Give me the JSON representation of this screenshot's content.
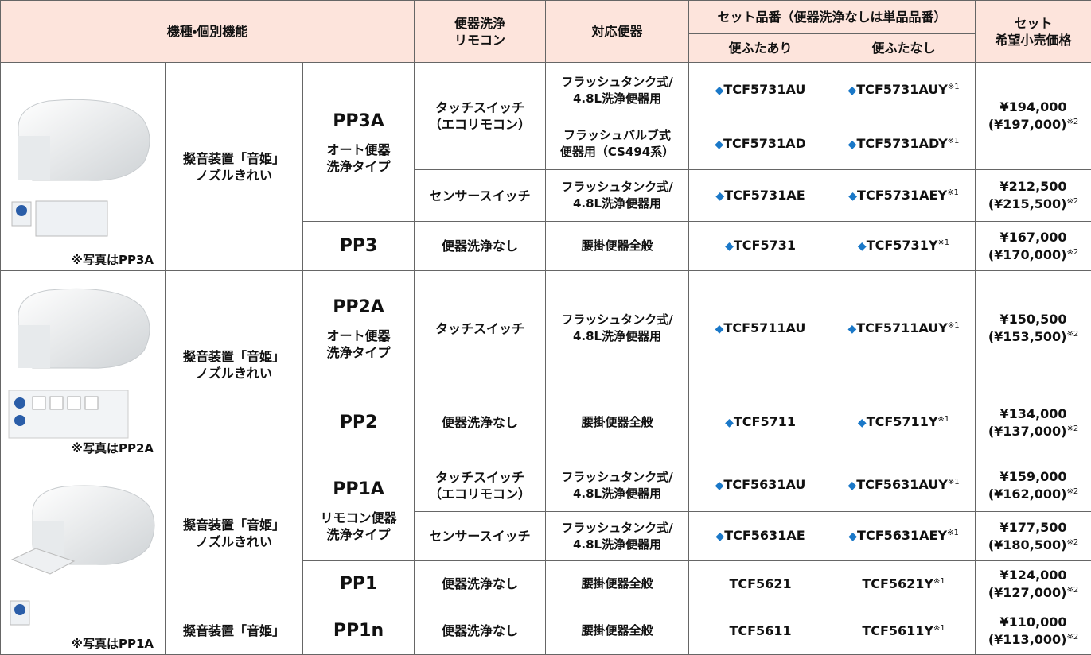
{
  "header": {
    "model_feature": "機種・個別機能",
    "remote": [
      "便器洗浄",
      "リモコン"
    ],
    "toilet": "対応便器",
    "set_number": "セット品番（便器洗浄なしは単品品番）",
    "with_lid": "便ふたあり",
    "without_lid": "便ふたなし",
    "price": [
      "セット",
      "希望小売価格"
    ]
  },
  "rows": [
    {
      "photo_caption": "※写真はPP3A",
      "feature": [
        "擬音装置「音姫」",
        "ノズルきれい"
      ],
      "model": "PP3A",
      "model_type": [
        "オート便器",
        "洗浄タイプ"
      ],
      "remote": [
        "タッチスイッチ",
        "（エコリモコン）"
      ],
      "toilet": [
        "フラッシュタンク式/",
        "4.8L洗浄便器用"
      ],
      "with_lid": {
        "mark": "◆",
        "code": "TCF5731AU"
      },
      "without_lid": {
        "mark": "◆",
        "code": "TCF5731AUY",
        "note": "※1"
      },
      "price": {
        "retail": "¥194,000",
        "incl": "(¥197,000)",
        "note": "※2"
      }
    },
    {
      "toilet": [
        "フラッシュバルブ式",
        "便器用（CS494系）"
      ],
      "with_lid": {
        "mark": "◆",
        "code": "TCF5731AD"
      },
      "without_lid": {
        "mark": "◆",
        "code": "TCF5731ADY",
        "note": "※1"
      }
    },
    {
      "remote": [
        "センサースイッチ"
      ],
      "toilet": [
        "フラッシュタンク式/",
        "4.8L洗浄便器用"
      ],
      "with_lid": {
        "mark": "◆",
        "code": "TCF5731AE"
      },
      "without_lid": {
        "mark": "◆",
        "code": "TCF5731AEY",
        "note": "※1"
      },
      "price": {
        "retail": "¥212,500",
        "incl": "(¥215,500)",
        "note": "※2"
      }
    },
    {
      "model": "PP3",
      "remote": [
        "便器洗浄なし"
      ],
      "toilet": [
        "腰掛便器全般"
      ],
      "with_lid": {
        "mark": "◆",
        "code": "TCF5731"
      },
      "without_lid": {
        "mark": "◆",
        "code": "TCF5731Y",
        "note": "※1"
      },
      "price": {
        "retail": "¥167,000",
        "incl": "(¥170,000)",
        "note": "※2"
      }
    },
    {
      "photo_caption": "※写真はPP2A",
      "feature": [
        "擬音装置「音姫」",
        "ノズルきれい"
      ],
      "model": "PP2A",
      "model_type": [
        "オート便器",
        "洗浄タイプ"
      ],
      "remote": [
        "タッチスイッチ"
      ],
      "toilet": [
        "フラッシュタンク式/",
        "4.8L洗浄便器用"
      ],
      "with_lid": {
        "mark": "◆",
        "code": "TCF5711AU"
      },
      "without_lid": {
        "mark": "◆",
        "code": "TCF5711AUY",
        "note": "※1"
      },
      "price": {
        "retail": "¥150,500",
        "incl": "(¥153,500)",
        "note": "※2"
      }
    },
    {
      "model": "PP2",
      "remote": [
        "便器洗浄なし"
      ],
      "toilet": [
        "腰掛便器全般"
      ],
      "with_lid": {
        "mark": "◆",
        "code": "TCF5711"
      },
      "without_lid": {
        "mark": "◆",
        "code": "TCF5711Y",
        "note": "※1"
      },
      "price": {
        "retail": "¥134,000",
        "incl": "(¥137,000)",
        "note": "※2"
      }
    },
    {
      "photo_caption": "※写真はPP1A",
      "feature": [
        "擬音装置「音姫」",
        "ノズルきれい"
      ],
      "model": "PP1A",
      "model_type": [
        "リモコン便器",
        "洗浄タイプ"
      ],
      "remote": [
        "タッチスイッチ",
        "（エコリモコン）"
      ],
      "toilet": [
        "フラッシュタンク式/",
        "4.8L洗浄便器用"
      ],
      "with_lid": {
        "mark": "◆",
        "code": "TCF5631AU"
      },
      "without_lid": {
        "mark": "◆",
        "code": "TCF5631AUY",
        "note": "※1"
      },
      "price": {
        "retail": "¥159,000",
        "incl": "(¥162,000)",
        "note": "※2"
      }
    },
    {
      "remote": [
        "センサースイッチ"
      ],
      "toilet": [
        "フラッシュタンク式/",
        "4.8L洗浄便器用"
      ],
      "with_lid": {
        "mark": "◆",
        "code": "TCF5631AE"
      },
      "without_lid": {
        "mark": "◆",
        "code": "TCF5631AEY",
        "note": "※1"
      },
      "price": {
        "retail": "¥177,500",
        "incl": "(¥180,500)",
        "note": "※2"
      }
    },
    {
      "model": "PP1",
      "remote": [
        "便器洗浄なし"
      ],
      "toilet": [
        "腰掛便器全般"
      ],
      "with_lid": {
        "code": "TCF5621"
      },
      "without_lid": {
        "code": "TCF5621Y",
        "note": "※1"
      },
      "price": {
        "retail": "¥124,000",
        "incl": "(¥127,000)",
        "note": "※2"
      }
    },
    {
      "feature": [
        "擬音装置「音姫」"
      ],
      "model": "PP1n",
      "remote": [
        "便器洗浄なし"
      ],
      "toilet": [
        "腰掛便器全般"
      ],
      "with_lid": {
        "code": "TCF5611"
      },
      "without_lid": {
        "code": "TCF5611Y",
        "note": "※1"
      },
      "price": {
        "retail": "¥110,000",
        "incl": "(¥113,000)",
        "note": "※2"
      }
    }
  ]
}
